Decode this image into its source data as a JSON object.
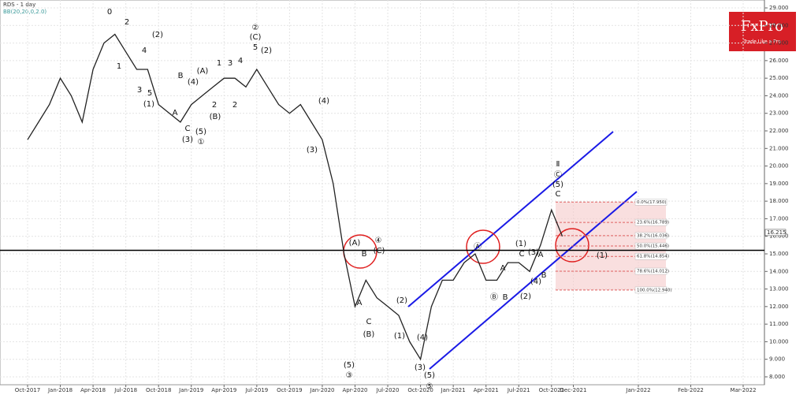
{
  "chart_data": {
    "type": "line",
    "title": "RDS - 1 day",
    "indicator": "BB(20,20,0,2.0)",
    "x": [
      "2017-10",
      "2017-11",
      "2017-12",
      "2018-01",
      "2018-02",
      "2018-03",
      "2018-04",
      "2018-05",
      "2018-06",
      "2018-07",
      "2018-08",
      "2018-09",
      "2018-10",
      "2018-11",
      "2018-12",
      "2019-01",
      "2019-02",
      "2019-03",
      "2019-04",
      "2019-05",
      "2019-06",
      "2019-07",
      "2019-08",
      "2019-09",
      "2019-10",
      "2019-11",
      "2019-12",
      "2020-01",
      "2020-02",
      "2020-03",
      "2020-04",
      "2020-05",
      "2020-06",
      "2020-07",
      "2020-08",
      "2020-09",
      "2020-10",
      "2020-11",
      "2020-12",
      "2021-01",
      "2021-02",
      "2021-03",
      "2021-04",
      "2021-05",
      "2021-06",
      "2021-07",
      "2021-08",
      "2021-09",
      "2021-10",
      "2021-11"
    ],
    "values": [
      21.5,
      22.5,
      23.5,
      25.0,
      24.0,
      22.5,
      25.5,
      27.0,
      27.5,
      26.5,
      25.5,
      25.5,
      23.5,
      23.0,
      22.5,
      23.5,
      24.0,
      24.5,
      25.0,
      25.0,
      24.5,
      25.5,
      24.5,
      23.5,
      23.0,
      23.5,
      22.5,
      21.5,
      19.0,
      15.0,
      12.0,
      13.5,
      12.5,
      12.0,
      11.5,
      10.0,
      9.0,
      12.0,
      13.5,
      13.5,
      14.5,
      15.0,
      13.5,
      13.5,
      14.5,
      14.5,
      14.0,
      15.5,
      17.5,
      16.0
    ],
    "color": "#222222",
    "xlim": [
      "2017-08",
      "2022-04"
    ],
    "xticks": [
      {
        "value": "2017-10",
        "label": "Oct-2017"
      },
      {
        "value": "2018-01",
        "label": "Jan-2018"
      },
      {
        "value": "2018-04",
        "label": "Apr-2018"
      },
      {
        "value": "2018-07",
        "label": "Jul-2018"
      },
      {
        "value": "2018-10",
        "label": "Oct-2018"
      },
      {
        "value": "2019-01",
        "label": "Jan-2019"
      },
      {
        "value": "2019-04",
        "label": "Apr-2019"
      },
      {
        "value": "2019-07",
        "label": "Jul-2019"
      },
      {
        "value": "2019-10",
        "label": "Oct-2019"
      },
      {
        "value": "2020-01",
        "label": "Jan-2020"
      },
      {
        "value": "2020-04",
        "label": "Apr-2020"
      },
      {
        "value": "2020-07",
        "label": "Jul-2020"
      },
      {
        "value": "2020-10",
        "label": "Oct-2020"
      },
      {
        "value": "2021-01",
        "label": "Jan-2021"
      },
      {
        "value": "2021-04",
        "label": "Apr-2021"
      },
      {
        "value": "2021-07",
        "label": "Jul-2021"
      },
      {
        "value": "2021-10",
        "label": "Oct-2021"
      },
      {
        "value": "2021-12",
        "label": "Dec-2021"
      },
      {
        "value": "2022-01",
        "label": "Jan-2022"
      },
      {
        "value": "2022-02",
        "label": "Feb-2022"
      },
      {
        "value": "2022-03",
        "label": "Mar-2022"
      }
    ],
    "ylim": [
      7.55,
      29.45
    ],
    "yticks": [
      {
        "value": 8,
        "label": "8.000"
      },
      {
        "value": 9,
        "label": "9.000"
      },
      {
        "value": 10,
        "label": "10.000"
      },
      {
        "value": 11,
        "label": "11.000"
      },
      {
        "value": 12,
        "label": "12.000"
      },
      {
        "value": 13,
        "label": "13.000"
      },
      {
        "value": 14,
        "label": "14.000"
      },
      {
        "value": 15,
        "label": "15.000"
      },
      {
        "value": 16,
        "label": "16.000"
      },
      {
        "value": 17,
        "label": "17.000"
      },
      {
        "value": 18,
        "label": "18.000"
      },
      {
        "value": 19,
        "label": "19.000"
      },
      {
        "value": 20,
        "label": "20.000"
      },
      {
        "value": 21,
        "label": "21.000"
      },
      {
        "value": 22,
        "label": "22.000"
      },
      {
        "value": 23,
        "label": "23.000"
      },
      {
        "value": 24,
        "label": "24.000"
      },
      {
        "value": 25,
        "label": "25.000"
      },
      {
        "value": 26,
        "label": "26.000"
      },
      {
        "value": 27,
        "label": "27.000"
      },
      {
        "value": 28,
        "label": "28.000"
      },
      {
        "value": 29,
        "label": "29.000"
      }
    ],
    "last_price": 16.215,
    "support_level": 15.2,
    "fib_levels": [
      {
        "value": 17.95,
        "label": "0.0%(17.950)"
      },
      {
        "value": 16.789,
        "label": "23.6%(16.789)"
      },
      {
        "value": 16.036,
        "label": "38.2%(16.036)"
      },
      {
        "value": 15.446,
        "label": "50.0%(15.446)"
      },
      {
        "value": 14.854,
        "label": "61.8%(14.854)"
      },
      {
        "value": 14.012,
        "label": "78.6%(14.012)"
      },
      {
        "value": 12.94,
        "label": "100.0%(12.940)"
      }
    ],
    "wave_labels": [
      "0",
      "2",
      "4",
      "1",
      "3",
      "5",
      "(1)",
      "(2)",
      "B",
      "(4)",
      "A",
      "C",
      "(3)",
      "(5)",
      "①",
      "(A)",
      "(B)",
      "2",
      "1",
      "2",
      "3",
      "4",
      "5",
      "(C)",
      "②",
      "(2)",
      "(4)",
      "(3)",
      "(A)",
      "B",
      "④",
      "(C)",
      "A",
      "C",
      "(B)",
      "(1)",
      "(2)",
      "(4)",
      "(3)",
      "(5)",
      "⑤",
      "(5)",
      "③",
      "Ⓐ",
      "Ⓑ",
      "B",
      "A",
      "(1)",
      "C",
      "(3)",
      "A",
      "(4)",
      "B",
      "(2)",
      "Ⅱ",
      "Ⓒ",
      "(5)",
      "C",
      "(1)"
    ]
  },
  "brand": {
    "name": "FxPro",
    "tagline": "Trade Like a Pro"
  }
}
